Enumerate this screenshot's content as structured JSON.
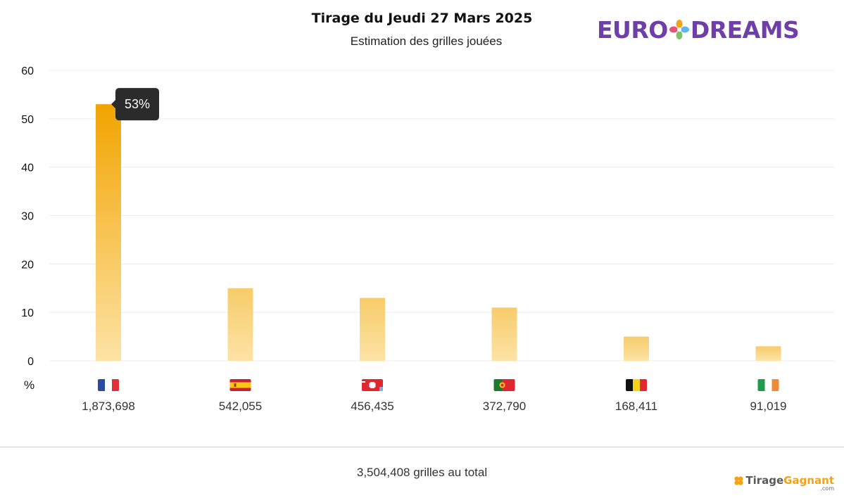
{
  "header": {
    "title": "Tirage du Jeudi 27 Mars 2025",
    "subtitle": "Estimation des grilles jouées",
    "logo_left": "EURO",
    "logo_right": "DREAMS"
  },
  "colors": {
    "bar_top": "#f2a400",
    "bar_bottom": "#fde3a6",
    "bar_faded_top": "#f7cc6a",
    "tooltip_bg": "#2b2b2b",
    "logo_purple": "#6f3ea8",
    "brand_orange": "#f2a31a"
  },
  "chart_data": {
    "type": "bar",
    "categories": [
      "France",
      "Espagne",
      "Suisse",
      "Portugal",
      "Belgique",
      "Irlande"
    ],
    "flag_icons": [
      "france-flag-icon",
      "spain-flag-icon",
      "switzerland-flag-icon",
      "portugal-flag-icon",
      "belgium-flag-icon",
      "ireland-flag-icon"
    ],
    "values": [
      53,
      15,
      13,
      11,
      5,
      3
    ],
    "tick_labels": [
      "1,873,698",
      "542,055",
      "456,435",
      "372,790",
      "168,411",
      "91,019"
    ],
    "ylabel": "%",
    "ylim": [
      0,
      60
    ],
    "yticks": [
      0,
      10,
      20,
      30,
      40,
      50,
      60
    ],
    "grid": true,
    "tooltip": {
      "category_index": 0,
      "text": "53%"
    }
  },
  "footer": {
    "total": "3,504,408 grilles au total",
    "brand_main": "Tirage",
    "brand_accent": "Gagnant",
    "brand_domain": ".com"
  }
}
